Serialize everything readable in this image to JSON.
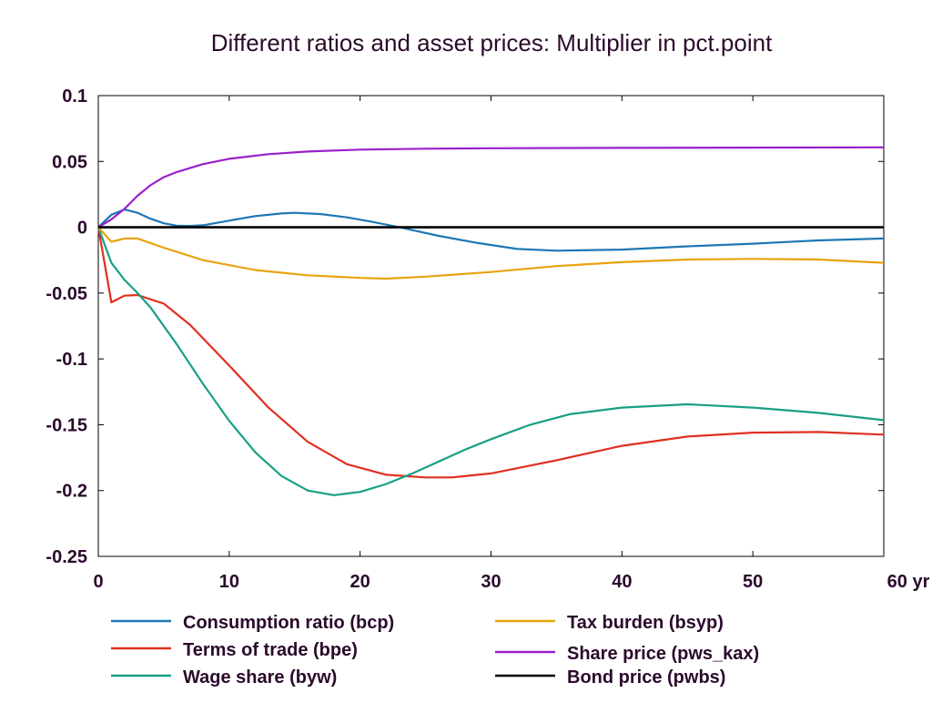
{
  "chart_data": {
    "type": "line",
    "title": "Different ratios and asset prices: Multiplier in pct.point",
    "xlabel": "",
    "ylabel": "",
    "xlim": [
      0,
      60
    ],
    "ylim": [
      -0.25,
      0.1
    ],
    "x_ticks": [
      0,
      10,
      20,
      30,
      40,
      50,
      60
    ],
    "x_tick_labels": [
      "0",
      "10",
      "20",
      "30",
      "40",
      "50",
      "60 yr"
    ],
    "y_ticks": [
      0.1,
      0.05,
      0,
      -0.05,
      -0.1,
      -0.15,
      -0.2,
      -0.25
    ],
    "y_tick_labels": [
      "0.1",
      "0.05",
      "0",
      "-0.05",
      "-0.1",
      "-0.15",
      "-0.2",
      "-0.25"
    ],
    "grid": false,
    "legend_position": "bottom",
    "series": [
      {
        "name": "Consumption ratio (bcp)",
        "color": "#1f77b4",
        "x": [
          0,
          1,
          2,
          3,
          4,
          5,
          6,
          7,
          8,
          10,
          12,
          14,
          15,
          17,
          19,
          21,
          23,
          26,
          29,
          32,
          35,
          40,
          45,
          50,
          55,
          60
        ],
        "y": [
          0,
          0.0095,
          0.0135,
          0.011,
          0.0065,
          0.003,
          0.0012,
          0.001,
          0.0015,
          0.005,
          0.0085,
          0.0105,
          0.011,
          0.01,
          0.0075,
          0.004,
          0.0,
          -0.0065,
          -0.012,
          -0.0165,
          -0.0178,
          -0.017,
          -0.0145,
          -0.0125,
          -0.01,
          -0.0085
        ]
      },
      {
        "name": "Terms of trade (bpe)",
        "color": "#e03020",
        "x": [
          0,
          1,
          2,
          3,
          5,
          7,
          10,
          13,
          16,
          19,
          22,
          25,
          27,
          30,
          35,
          40,
          45,
          50,
          55,
          60
        ],
        "y": [
          0,
          -0.057,
          -0.052,
          -0.0515,
          -0.058,
          -0.074,
          -0.105,
          -0.137,
          -0.163,
          -0.18,
          -0.188,
          -0.19,
          -0.19,
          -0.187,
          -0.177,
          -0.166,
          -0.159,
          -0.156,
          -0.1555,
          -0.1575
        ]
      },
      {
        "name": "Wage share (byw)",
        "color": "#17a085",
        "x": [
          0,
          1,
          2,
          3,
          4,
          6,
          8,
          10,
          12,
          14,
          16,
          18,
          20,
          22,
          24,
          26,
          28,
          30,
          33,
          36,
          40,
          45,
          50,
          55,
          60
        ],
        "y": [
          0,
          -0.027,
          -0.04,
          -0.05,
          -0.061,
          -0.089,
          -0.119,
          -0.147,
          -0.171,
          -0.189,
          -0.2,
          -0.2035,
          -0.201,
          -0.195,
          -0.187,
          -0.178,
          -0.169,
          -0.161,
          -0.15,
          -0.142,
          -0.137,
          -0.1345,
          -0.137,
          -0.141,
          -0.1465
        ]
      },
      {
        "name": "Tax burden (bsyp)",
        "color": "#e8a30e",
        "x": [
          0,
          1,
          2,
          3,
          5,
          8,
          12,
          16,
          20,
          22,
          25,
          30,
          35,
          40,
          45,
          50,
          55,
          60
        ],
        "y": [
          0,
          -0.011,
          -0.0085,
          -0.0085,
          -0.0155,
          -0.025,
          -0.0325,
          -0.0365,
          -0.0385,
          -0.039,
          -0.0375,
          -0.034,
          -0.0295,
          -0.0265,
          -0.0245,
          -0.024,
          -0.0245,
          -0.027
        ]
      },
      {
        "name": "Share price (pws_kax)",
        "color": "#9a20c8",
        "x": [
          0,
          1,
          2,
          3,
          4,
          5,
          6,
          8,
          10,
          13,
          16,
          20,
          25,
          30,
          40,
          50,
          60
        ],
        "y": [
          0,
          0.006,
          0.014,
          0.024,
          0.032,
          0.038,
          0.042,
          0.048,
          0.052,
          0.0555,
          0.0575,
          0.059,
          0.0597,
          0.06,
          0.0603,
          0.0605,
          0.0607
        ]
      },
      {
        "name": "Bond price (pwbs)",
        "color": "#000000",
        "x": [
          0,
          60
        ],
        "y": [
          0,
          0
        ]
      }
    ],
    "legend_layout": [
      [
        0,
        1,
        2
      ],
      [
        3,
        4,
        5
      ]
    ]
  }
}
